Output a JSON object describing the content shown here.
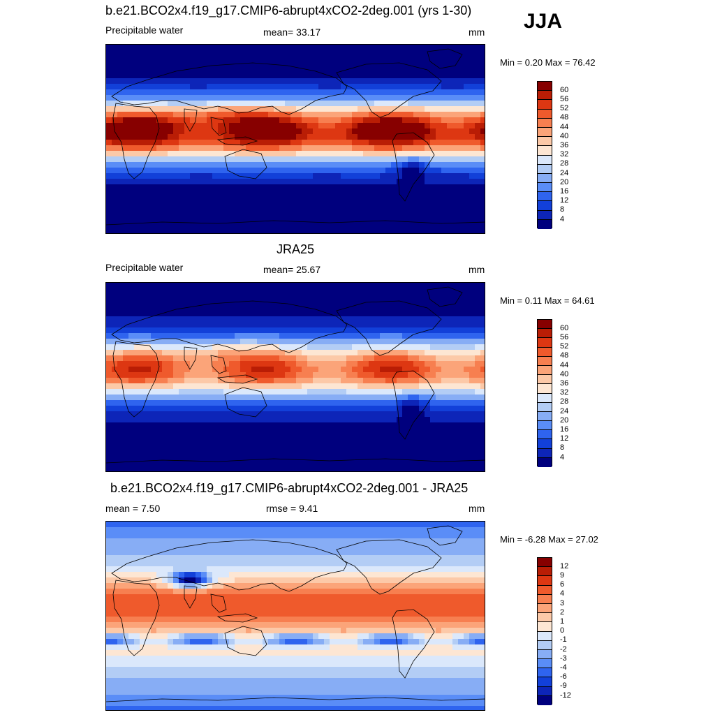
{
  "season": "JJA",
  "panels": [
    {
      "title": "b.e21.BCO2x4.f19_g17.CMIP6-abrupt4xCO2-2deg.001 (yrs 1-30)",
      "left_label": "Precipitable water",
      "center_label": "mean=  33.17",
      "right_label": "mm",
      "minmax": "Min =   0.20 Max =  76.42",
      "kind": "abs",
      "intensity": 1.0,
      "colorbar_labels": [
        "60",
        "56",
        "52",
        "48",
        "44",
        "40",
        "36",
        "32",
        "28",
        "24",
        "20",
        "16",
        "12",
        "8",
        "4"
      ]
    },
    {
      "title": "JRA25",
      "left_label": "Precipitable water",
      "center_label": "mean=  25.67",
      "right_label": "mm",
      "minmax": "Min =   0.11 Max =  64.61",
      "kind": "abs",
      "intensity": 0.8,
      "colorbar_labels": [
        "60",
        "56",
        "52",
        "48",
        "44",
        "40",
        "36",
        "32",
        "28",
        "24",
        "20",
        "16",
        "12",
        "8",
        "4"
      ]
    },
    {
      "title": "b.e21.BCO2x4.f19_g17.CMIP6-abrupt4xCO2-2deg.001 - JRA25",
      "left_label": "mean =   7.50",
      "center_label": "rmse =   9.41",
      "right_label": "mm",
      "minmax": "Min =  -6.28 Max =  27.02",
      "kind": "diff",
      "intensity": 1.0,
      "colorbar_labels": [
        "12",
        "9",
        "6",
        "4",
        "3",
        "2",
        "1",
        "0",
        "-1",
        "-2",
        "-3",
        "-4",
        "-6",
        "-9",
        "-12"
      ]
    }
  ],
  "colors": {
    "palette": [
      "#00007e",
      "#0d25b8",
      "#1240d9",
      "#2f64ef",
      "#5a8df7",
      "#87adf5",
      "#b3cdf5",
      "#dbe8fb",
      "#fde6d3",
      "#fcc9a8",
      "#fba479",
      "#f77f50",
      "#ef5a2c",
      "#dd3712",
      "#b91d05",
      "#870000"
    ]
  }
}
